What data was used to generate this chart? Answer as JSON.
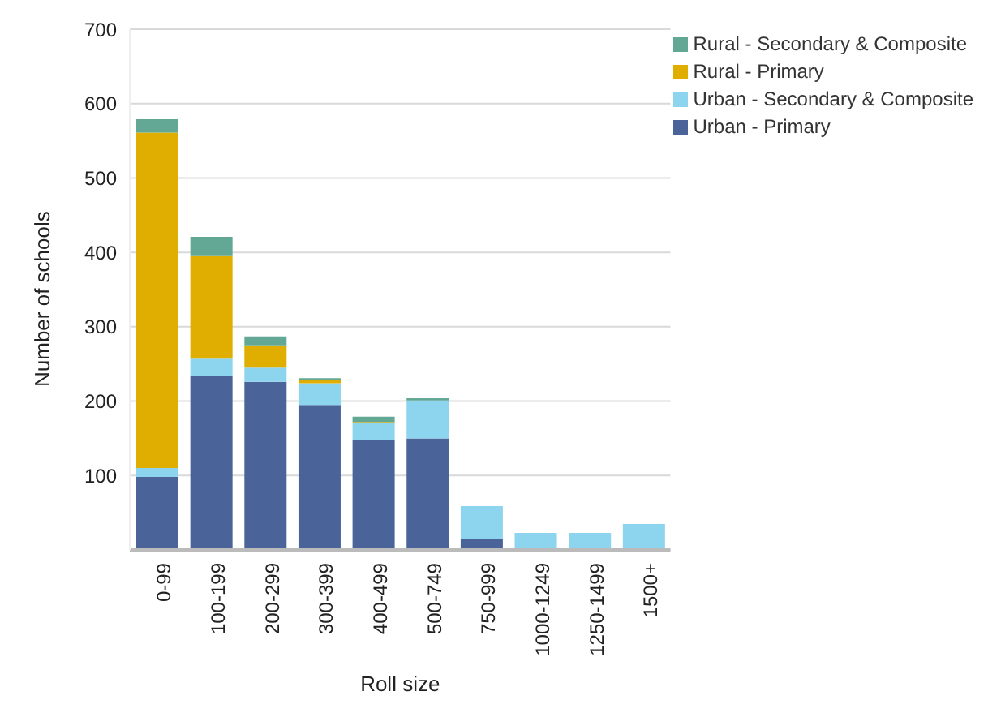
{
  "chart_data": {
    "type": "bar",
    "stacked": true,
    "xlabel": "Roll size",
    "ylabel": "Number of schools",
    "categories": [
      "0-99",
      "100-199",
      "200-299",
      "300-399",
      "400-499",
      "500-749",
      "750-999",
      "1000-1249",
      "1250-1499",
      "1500+"
    ],
    "series": [
      {
        "name": "Urban - Primary",
        "color": "#4a6399",
        "values": [
          98,
          234,
          226,
          195,
          148,
          150,
          15,
          0,
          0,
          0
        ]
      },
      {
        "name": "Urban - Secondary & Composite",
        "color": "#8dd5ee",
        "values": [
          12,
          23,
          19,
          29,
          22,
          51,
          44,
          23,
          23,
          35
        ]
      },
      {
        "name": "Rural - Primary",
        "color": "#dfae00",
        "values": [
          451,
          138,
          30,
          5,
          2,
          0,
          0,
          0,
          0,
          0
        ]
      },
      {
        "name": "Rural - Secondary & Composite",
        "color": "#62a895",
        "values": [
          18,
          26,
          12,
          2,
          7,
          3,
          0,
          0,
          0,
          0
        ]
      }
    ],
    "ylim": [
      0,
      700
    ],
    "yticks": [
      {
        "value": 0,
        "label": null
      },
      100,
      200,
      300,
      400,
      500,
      600,
      700
    ],
    "grid": "y",
    "legend": "top right"
  }
}
